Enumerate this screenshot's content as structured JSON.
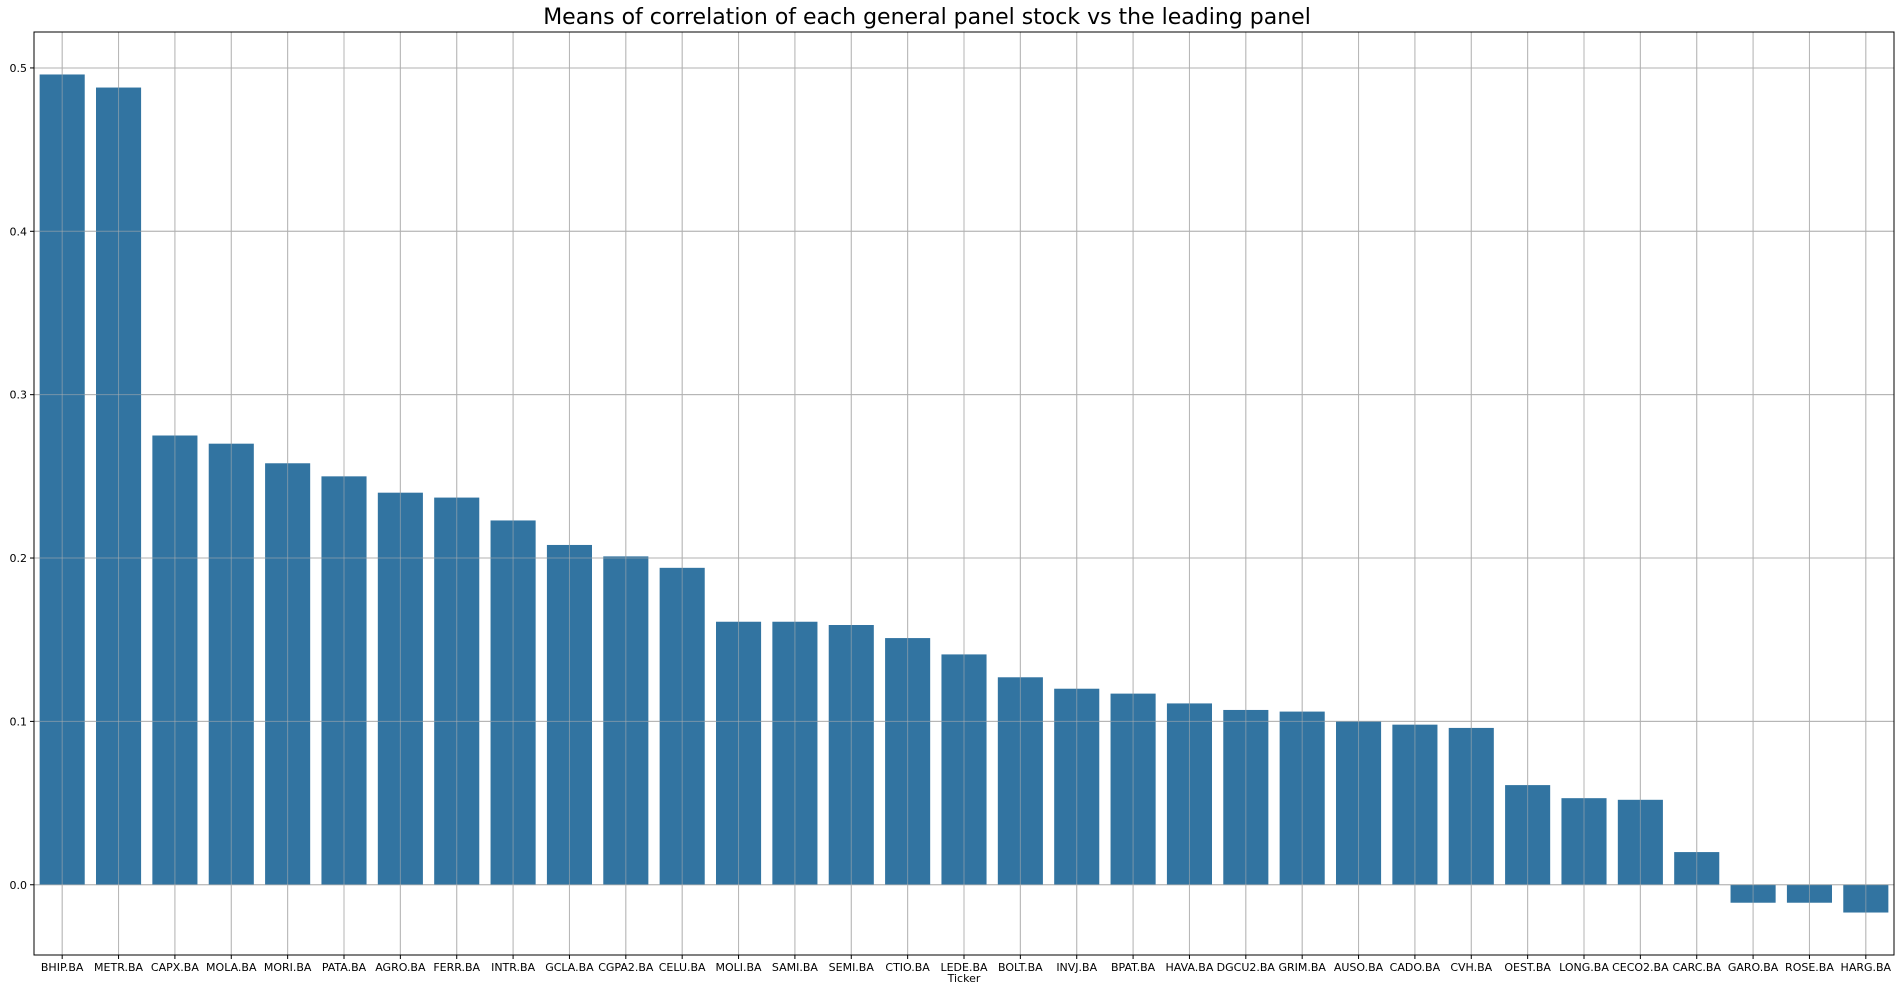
{
  "chart_data": {
    "type": "bar",
    "title": "Means of correlation of each general panel stock vs the leading panel",
    "xlabel": "Ticker",
    "ylabel": "",
    "ylim": [
      -0.043,
      0.522
    ],
    "yticks": [
      0.0,
      0.1,
      0.2,
      0.3,
      0.4,
      0.5
    ],
    "ytick_labels": [
      "0.0",
      "0.1",
      "0.2",
      "0.3",
      "0.4",
      "0.5"
    ],
    "grid": true,
    "bar_color": "#3274a1",
    "categories": [
      "BHIP.BA",
      "METR.BA",
      "CAPX.BA",
      "MOLA.BA",
      "MORI.BA",
      "PATA.BA",
      "AGRO.BA",
      "FERR.BA",
      "INTR.BA",
      "GCLA.BA",
      "CGPA2.BA",
      "CELU.BA",
      "MOLI.BA",
      "SAMI.BA",
      "SEMI.BA",
      "CTIO.BA",
      "LEDE.BA",
      "BOLT.BA",
      "INVJ.BA",
      "BPAT.BA",
      "HAVA.BA",
      "DGCU2.BA",
      "GRIM.BA",
      "AUSO.BA",
      "CADO.BA",
      "CVH.BA",
      "OEST.BA",
      "LONG.BA",
      "CECO2.BA",
      "CARC.BA",
      "GARO.BA",
      "ROSE.BA",
      "HARG.BA"
    ],
    "values": [
      0.496,
      0.488,
      0.275,
      0.27,
      0.258,
      0.25,
      0.24,
      0.237,
      0.223,
      0.208,
      0.201,
      0.194,
      0.161,
      0.161,
      0.159,
      0.151,
      0.141,
      0.127,
      0.12,
      0.117,
      0.111,
      0.107,
      0.106,
      0.1,
      0.098,
      0.096,
      0.061,
      0.053,
      0.052,
      0.02,
      -0.011,
      -0.011,
      -0.017
    ]
  }
}
